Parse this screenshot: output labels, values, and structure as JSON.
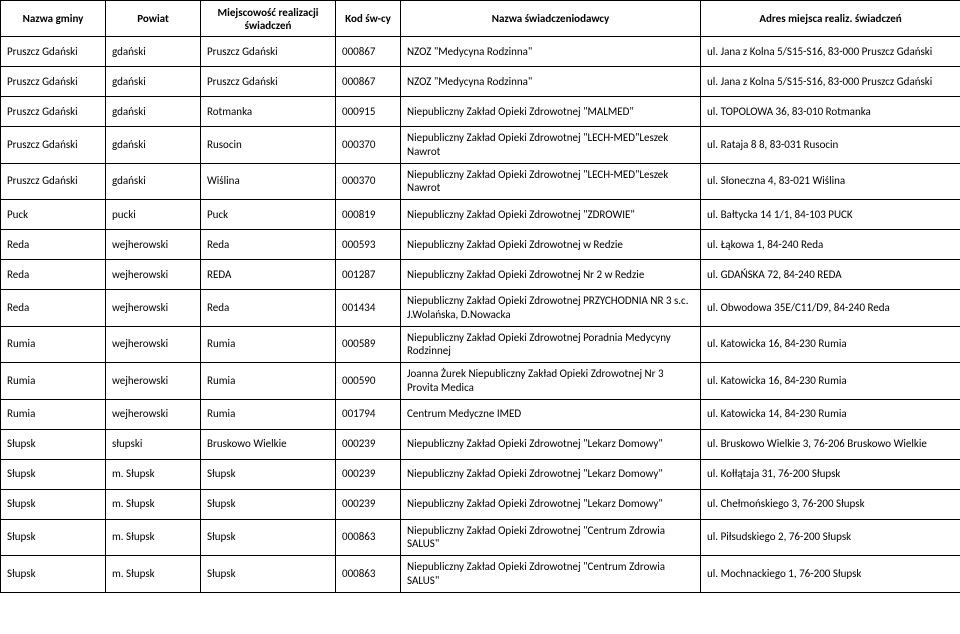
{
  "columns": [
    "Nazwa gminy",
    "Powiat",
    "Miejscowość realizacji świadczeń",
    "Kod św-cy",
    "Nazwa świadczeniodawcy",
    "Adres miejsca realiz. świadczeń"
  ],
  "rows": [
    [
      "Pruszcz Gdański",
      "gdański",
      "Pruszcz Gdański",
      "000867",
      "NZOZ \"Medycyna Rodzinna\"",
      "ul. Jana z Kolna 5/S15-S16, 83-000 Pruszcz Gdański"
    ],
    [
      "Pruszcz Gdański",
      "gdański",
      "Pruszcz Gdański",
      "000867",
      "NZOZ \"Medycyna Rodzinna\"",
      "ul. Jana z Kolna 5/S15-S16, 83-000 Pruszcz Gdański"
    ],
    [
      "Pruszcz Gdański",
      "gdański",
      "Rotmanka",
      "000915",
      "Niepubliczny Zakład Opieki Zdrowotnej \"MALMED\"",
      "ul. TOPOLOWA 36, 83-010 Rotmanka"
    ],
    [
      "Pruszcz Gdański",
      "gdański",
      "Rusocin",
      "000370",
      "Niepubliczny Zakład Opieki Zdrowotnej \"LECH-MED\"Leszek Nawrot",
      "ul. Rataja 8 8, 83-031 Rusocin"
    ],
    [
      "Pruszcz Gdański",
      "gdański",
      "Wiślina",
      "000370",
      "Niepubliczny Zakład Opieki Zdrowotnej \"LECH-MED\"Leszek Nawrot",
      "ul. Słoneczna 4, 83-021 Wiślina"
    ],
    [
      "Puck",
      "pucki",
      "Puck",
      "000819",
      "Niepubliczny Zakład Opieki Zdrowotnej \"ZDROWIE\"",
      "ul. Bałtycka 14 1/1, 84-103 PUCK"
    ],
    [
      "Reda",
      "wejherowski",
      "Reda",
      "000593",
      "Niepubliczny Zakład Opieki Zdrowotnej w Redzie",
      "ul. Łąkowa 1, 84-240 Reda"
    ],
    [
      "Reda",
      "wejherowski",
      "REDA",
      "001287",
      "Niepubliczny Zakład Opieki Zdrowotnej Nr 2 w Redzie",
      "ul. GDAŃSKA 72, 84-240 REDA"
    ],
    [
      "Reda",
      "wejherowski",
      "Reda",
      "001434",
      "Niepubliczny Zakład Opieki Zdrowotnej PRZYCHODNIA NR 3 s.c. J.Wolańska, D.Nowacka",
      "ul. Obwodowa 35E/C11/D9, 84-240 Reda"
    ],
    [
      "Rumia",
      "wejherowski",
      "Rumia",
      "000589",
      "Niepubliczny Zakład Opieki Zdrowotnej Poradnia Medycyny Rodzinnej",
      "ul. Katowicka 16, 84-230 Rumia"
    ],
    [
      "Rumia",
      "wejherowski",
      "Rumia",
      "000590",
      "Joanna Żurek Niepubliczny Zakład Opieki Zdrowotnej Nr 3 Provita Medica",
      "ul. Katowicka 16, 84-230 Rumia"
    ],
    [
      "Rumia",
      "wejherowski",
      "Rumia",
      "001794",
      "Centrum Medyczne IMED",
      "ul. Katowicka 14, 84-230 Rumia"
    ],
    [
      "Słupsk",
      "słupski",
      "Bruskowo Wielkie",
      "000239",
      "Niepubliczny Zakład Opieki Zdrowotnej \"Lekarz Domowy\"",
      "ul. Bruskowo Wielkie 3, 76-206 Bruskowo Wielkie"
    ],
    [
      "Słupsk",
      "m. Słupsk",
      "Słupsk",
      "000239",
      "Niepubliczny Zakład Opieki Zdrowotnej \"Lekarz Domowy\"",
      "ul. Kołłątaja 31, 76-200 Słupsk"
    ],
    [
      "Słupsk",
      "m. Słupsk",
      "Słupsk",
      "000239",
      "Niepubliczny Zakład Opieki Zdrowotnej \"Lekarz Domowy\"",
      "ul. Chełmońskiego 3, 76-200 Słupsk"
    ],
    [
      "Słupsk",
      "m. Słupsk",
      "Słupsk",
      "000863",
      "Niepubliczny Zakład Opieki Zdrowotnej \"Centrum Zdrowia SALUS\"",
      "ul. Piłsudskiego 2, 76-200 Słupsk"
    ],
    [
      "Słupsk",
      "m. Słupsk",
      "Słupsk",
      "000863",
      "Niepubliczny Zakład Opieki Zdrowotnej \"Centrum Zdrowia SALUS\"",
      "ul. Mochnackiego 1, 76-200 Słupsk"
    ]
  ]
}
